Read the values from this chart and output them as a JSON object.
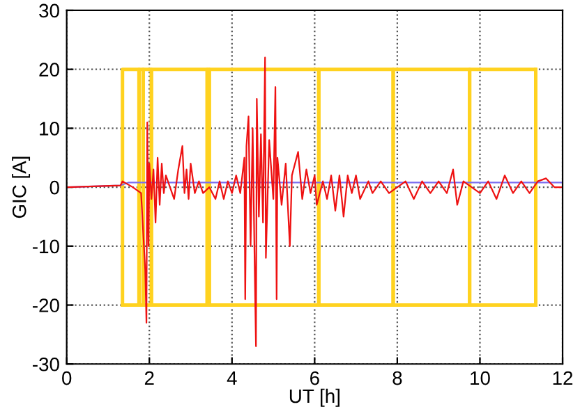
{
  "chart_data": {
    "type": "line",
    "xlabel": "UT [h]",
    "ylabel": "GIC [A]",
    "xlim": [
      0,
      12
    ],
    "xticks": [
      0,
      2,
      4,
      6,
      8,
      10,
      12
    ],
    "ylim": [
      -30,
      30
    ],
    "yticks": [
      -30,
      -20,
      -10,
      0,
      10,
      20,
      30
    ],
    "grid": true,
    "line_style": "solid",
    "marker": "none",
    "series": [
      {
        "type": "step",
        "color": "#ffd21f",
        "x": [
          1.35,
          1.35,
          1.75,
          1.85,
          2.05,
          3.4,
          3.45,
          6.1,
          7.9,
          9.75,
          11.35
        ],
        "values": [
          -20,
          20,
          -20,
          20,
          -20,
          20,
          -20,
          20,
          -20,
          20,
          -20
        ]
      },
      {
        "type": "step",
        "color": "#ffd21f",
        "x": [
          1.35,
          1.75,
          1.85,
          2.05,
          3.4,
          3.45,
          6.1,
          7.9,
          9.75,
          11.35
        ],
        "values": [
          -20,
          20,
          -20,
          20,
          -20,
          20,
          -20,
          20,
          -20,
          20
        ]
      },
      {
        "color": "#7a6cf0",
        "x": [
          0,
          1.3,
          1.5,
          12
        ],
        "values": [
          0,
          0.3,
          0.8,
          0.8
        ]
      },
      {
        "color": "#ee1111",
        "x": [
          0,
          1.3,
          1.35,
          1.6,
          1.8,
          1.9,
          1.93,
          1.95,
          1.98,
          2.0,
          2.05,
          2.1,
          2.15,
          2.2,
          2.25,
          2.3,
          2.35,
          2.4,
          2.5,
          2.6,
          2.7,
          2.8,
          2.85,
          2.9,
          2.95,
          3.0,
          3.1,
          3.2,
          3.3,
          3.45,
          3.6,
          3.7,
          3.8,
          3.9,
          4.0,
          4.1,
          4.2,
          4.3,
          4.32,
          4.35,
          4.4,
          4.45,
          4.5,
          4.55,
          4.58,
          4.6,
          4.65,
          4.7,
          4.75,
          4.8,
          4.82,
          4.9,
          5.0,
          5.05,
          5.08,
          5.1,
          5.2,
          5.3,
          5.4,
          5.45,
          5.6,
          5.7,
          5.8,
          5.9,
          6.0,
          6.05,
          6.2,
          6.3,
          6.4,
          6.5,
          6.6,
          6.7,
          6.8,
          6.9,
          7.0,
          7.1,
          7.3,
          7.4,
          7.6,
          7.8,
          8.0,
          8.2,
          8.4,
          8.6,
          8.8,
          9.0,
          9.2,
          9.35,
          9.45,
          9.6,
          9.8,
          10.0,
          10.2,
          10.4,
          10.6,
          10.8,
          11.0,
          11.2,
          11.4,
          11.6,
          11.8,
          12
        ],
        "values": [
          0,
          0.3,
          1,
          0,
          -1,
          -14,
          -23,
          11,
          -10,
          4,
          -2,
          3,
          -6,
          5,
          -3,
          4,
          -1,
          2,
          0,
          -2,
          3,
          7,
          -1,
          3,
          -2,
          4,
          -1,
          1,
          -1,
          0,
          -2,
          1,
          -2,
          1,
          -1,
          2,
          -1,
          5,
          -19,
          7,
          12,
          -10,
          10,
          -14,
          -27,
          15,
          -5,
          9,
          -6,
          22,
          -12,
          8,
          -2,
          17,
          -19,
          5,
          -3,
          4,
          -10,
          2,
          6,
          -2,
          3,
          -1,
          2,
          -3,
          1,
          -2,
          2,
          -4,
          2,
          -5,
          2,
          -1,
          2,
          -2,
          1,
          -1,
          1,
          -1,
          0,
          1,
          -2,
          1,
          -1,
          1,
          -1,
          3,
          -3,
          1,
          0,
          -1,
          1,
          -2,
          2,
          -1,
          1,
          -1,
          1,
          1.5,
          0,
          0
        ]
      }
    ]
  }
}
